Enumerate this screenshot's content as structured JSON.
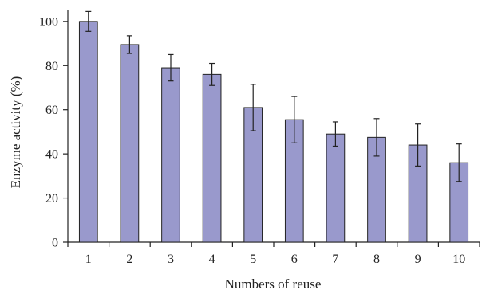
{
  "chart_data": {
    "type": "bar",
    "title": "",
    "xlabel": "Numbers of reuse",
    "ylabel": "Enzyme activity (%)",
    "categories": [
      "1",
      "2",
      "3",
      "4",
      "5",
      "6",
      "7",
      "8",
      "9",
      "10"
    ],
    "values": [
      100,
      89.5,
      79,
      76,
      61,
      55.5,
      49,
      47.5,
      44,
      36
    ],
    "errors": [
      4.5,
      4,
      6,
      5,
      10.5,
      10.5,
      5.5,
      8.5,
      9.5,
      8.5
    ],
    "ylim": [
      0,
      105
    ],
    "yticks": [
      0,
      20,
      40,
      60,
      80,
      100
    ],
    "grid": false,
    "legend": "none",
    "bar_color": "#9999cc"
  }
}
